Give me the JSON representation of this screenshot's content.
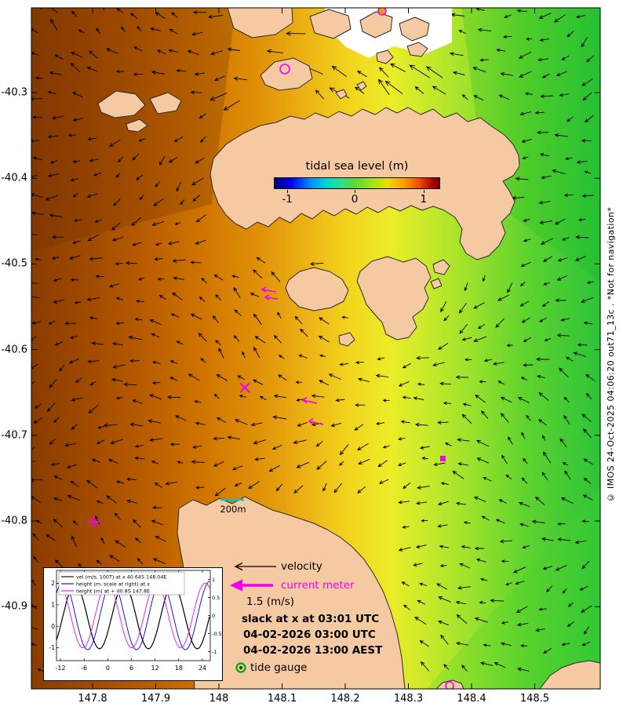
{
  "watermark": "© IMOS 24-Oct-2025 04:06:20 out71_13c . *Not for navigation*",
  "colorbar": {
    "title": "tidal sea level (m)",
    "ticks": [
      "-1",
      "0",
      "1"
    ]
  },
  "axes": {
    "x_ticks": [
      "147.8",
      "147.9",
      "148",
      "148.1",
      "148.2",
      "148.3",
      "148.4",
      "148.5"
    ],
    "y_ticks": [
      "-40.3",
      "-40.4",
      "-40.5",
      "-40.6",
      "-40.7",
      "-40.8",
      "-40.9"
    ]
  },
  "scale_bar": {
    "label": "200m"
  },
  "legend": {
    "velocity": "velocity",
    "current_meter": "current meter",
    "reference_speed": "1.5 (m/s)",
    "slack": "slack at x at 03:01 UTC",
    "time_utc": "04-02-2026 03:00 UTC",
    "time_aest": "04-02-2026 13:00 AEST",
    "tide_gauge": "tide gauge"
  },
  "inset": {
    "legend": [
      {
        "label": "vel (m/s, 100T) at x 40.64S 148.04E",
        "color": "#000000"
      },
      {
        "label": "height (m, scale at right) at x",
        "color": "#0000cc"
      },
      {
        "label": "height (m) at + 40.8S 147.8E",
        "color": "#ff00ff"
      }
    ],
    "x_ticks": [
      "-12",
      "-6",
      "0",
      "6",
      "12",
      "18",
      "24"
    ],
    "y_ticks_left": [
      "2",
      "1",
      "0",
      "-1"
    ],
    "y_ticks_right": [
      "1",
      "0.5",
      "0",
      "-0.5",
      "-1"
    ],
    "x_range": [
      -13,
      26
    ],
    "series": [
      {
        "name": "velocity",
        "color": "#000000",
        "scale": "left",
        "amplitude": 1.5,
        "period": 12.4,
        "phase": 1.0,
        "offset": 0.45
      },
      {
        "name": "height-at-x",
        "color": "#0000cc",
        "scale": "right",
        "amplitude": 0.95,
        "period": 12.4,
        "phase": -2.0,
        "offset": 0
      },
      {
        "name": "height-at-plus",
        "color": "#ff00ff",
        "scale": "right",
        "amplitude": 0.9,
        "period": 12.4,
        "phase": -3.2,
        "offset": 0
      }
    ]
  },
  "map_colors": {
    "land": "#f5c9a2",
    "sea_high_tide": "#8a3c00",
    "sea_mid_tide": "#ecb114",
    "sea_low_tide": "#2cc33a",
    "marker_magenta": "#f000f0",
    "tide_gauge_green": "#00a800",
    "scale_bar_cyan": "#00c8c8"
  }
}
